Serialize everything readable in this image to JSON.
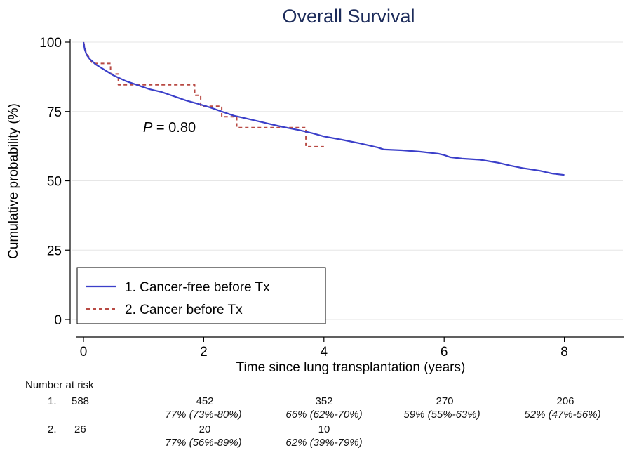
{
  "chart_data": {
    "type": "line",
    "title": "Overall Survival",
    "xlabel": "Time since lung transplantation (years)",
    "ylabel": "Cumulative probability (%)",
    "xlim": [
      -0.2,
      9
    ],
    "ylim": [
      -2,
      102
    ],
    "xticks": [
      "0",
      "2",
      "4",
      "6",
      "8"
    ],
    "yticks": [
      "100",
      "75",
      "50",
      "25",
      "0"
    ],
    "grid": "horizontal",
    "legend_position": "bottom-left",
    "annotation": {
      "italic": "P",
      "rest": " = 0.80"
    },
    "series": [
      {
        "name": "1. Cancer-free before Tx",
        "color": "#3b3fc9",
        "style": "solid",
        "points": [
          [
            0,
            100
          ],
          [
            0.02,
            97.5
          ],
          [
            0.05,
            95.5
          ],
          [
            0.1,
            94
          ],
          [
            0.2,
            92
          ],
          [
            0.35,
            90
          ],
          [
            0.5,
            88
          ],
          [
            0.7,
            86
          ],
          [
            0.9,
            84.5
          ],
          [
            1.1,
            83
          ],
          [
            1.3,
            82
          ],
          [
            1.5,
            80.5
          ],
          [
            1.7,
            79
          ],
          [
            1.9,
            77.8
          ],
          [
            2.1,
            76.5
          ],
          [
            2.3,
            75
          ],
          [
            2.5,
            73.5
          ],
          [
            2.7,
            72.5
          ],
          [
            3.0,
            71
          ],
          [
            3.3,
            69.5
          ],
          [
            3.6,
            68.2
          ],
          [
            3.8,
            67.2
          ],
          [
            4.0,
            66
          ],
          [
            4.3,
            64.8
          ],
          [
            4.6,
            63.5
          ],
          [
            4.9,
            62
          ],
          [
            5.0,
            61.3
          ],
          [
            5.3,
            61
          ],
          [
            5.6,
            60.5
          ],
          [
            5.9,
            59.8
          ],
          [
            6.0,
            59.3
          ],
          [
            6.1,
            58.5
          ],
          [
            6.3,
            58
          ],
          [
            6.6,
            57.6
          ],
          [
            6.9,
            56.5
          ],
          [
            7.1,
            55.5
          ],
          [
            7.3,
            54.6
          ],
          [
            7.6,
            53.6
          ],
          [
            7.8,
            52.6
          ],
          [
            8.0,
            52.1
          ]
        ]
      },
      {
        "name": "2. Cancer before Tx",
        "color": "#b84a44",
        "style": "dashed-step",
        "points": [
          [
            0,
            100
          ],
          [
            0.05,
            96
          ],
          [
            0.15,
            92.3
          ],
          [
            0.45,
            92.3
          ],
          [
            0.45,
            88.5
          ],
          [
            0.58,
            88.5
          ],
          [
            0.58,
            84.6
          ],
          [
            1.85,
            84.6
          ],
          [
            1.85,
            80.8
          ],
          [
            1.95,
            80.8
          ],
          [
            1.95,
            76.9
          ],
          [
            2.3,
            76.9
          ],
          [
            2.3,
            73.1
          ],
          [
            2.55,
            73.1
          ],
          [
            2.55,
            69.2
          ],
          [
            3.7,
            69.2
          ],
          [
            3.7,
            62.3
          ],
          [
            4.0,
            62.3
          ]
        ]
      }
    ]
  },
  "risk_table": {
    "heading": "Number at risk",
    "rows": [
      {
        "label": "1.",
        "n0": "588",
        "counts": [
          "452",
          "352",
          "270",
          "206"
        ],
        "pcts": [
          "77% (73%-80%)",
          "66% (62%-70%)",
          "59% (55%-63%)",
          "52% (47%-56%)"
        ]
      },
      {
        "label": "2.",
        "n0": "26",
        "counts": [
          "20",
          "10"
        ],
        "pcts": [
          "77% (56%-89%)",
          "62% (39%-79%)"
        ]
      }
    ]
  }
}
